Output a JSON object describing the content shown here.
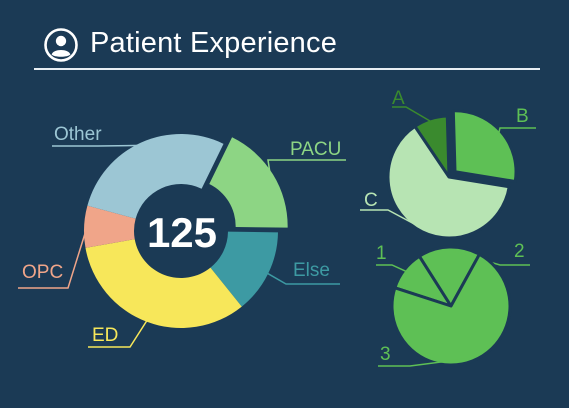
{
  "header": {
    "title": "Patient Experience",
    "icon": "user-circle-icon"
  },
  "colors": {
    "background": "#1b3a55",
    "Other": "#9cc6d4",
    "PACU": "#8dd584",
    "Else": "#3d9aa3",
    "ED": "#f7e75a",
    "OPC": "#f0a589",
    "A": "#3a8a2e",
    "B": "#5ec055",
    "C": "#b7e4b3",
    "circle": "#5ec055"
  },
  "chart_data": [
    {
      "type": "pie",
      "variant": "donut",
      "center_label": "125",
      "categories": [
        "PACU",
        "Else",
        "ED",
        "OPC",
        "Other"
      ],
      "values": [
        18,
        14,
        33,
        7,
        28
      ],
      "exploded": [
        "PACU"
      ]
    },
    {
      "type": "pie",
      "categories": [
        "A",
        "B",
        "C"
      ],
      "values": [
        9,
        28,
        63
      ],
      "exploded": [
        "B"
      ]
    },
    {
      "type": "pie",
      "categories": [
        "1",
        "2",
        "3"
      ],
      "values": [
        11,
        17,
        72
      ]
    }
  ]
}
